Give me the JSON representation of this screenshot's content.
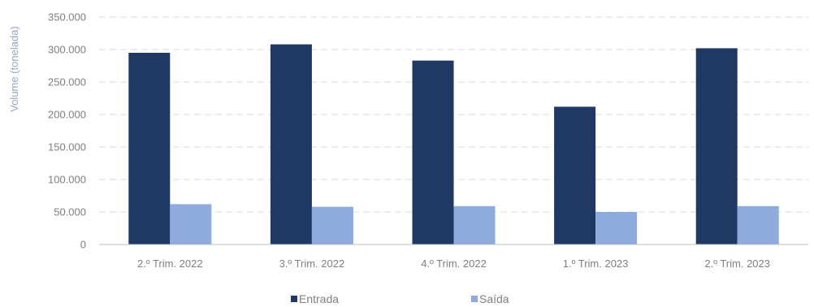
{
  "chart_data": {
    "type": "bar",
    "title": "",
    "xlabel": "",
    "ylabel": "Volume (tonelada)",
    "categories": [
      "2.º Trim. 2022",
      "3.º Trim. 2022",
      "4.º Trim. 2022",
      "1.º Trim. 2023",
      "2.º Trim. 2023"
    ],
    "series": [
      {
        "name": "Entrada",
        "color": "#1f3864",
        "values": [
          295000,
          308000,
          283000,
          212000,
          302000
        ]
      },
      {
        "name": "Saída",
        "color": "#8faadc",
        "values": [
          62000,
          58000,
          59000,
          50000,
          59000
        ]
      }
    ],
    "ylim": [
      0,
      350000
    ],
    "yticks": [
      0,
      50000,
      100000,
      150000,
      200000,
      250000,
      300000,
      350000
    ],
    "ytick_labels": [
      "0",
      "50.000",
      "100.000",
      "150.000",
      "200.000",
      "250.000",
      "300.000",
      "350.000"
    ],
    "grid": true,
    "legend_position": "bottom"
  }
}
